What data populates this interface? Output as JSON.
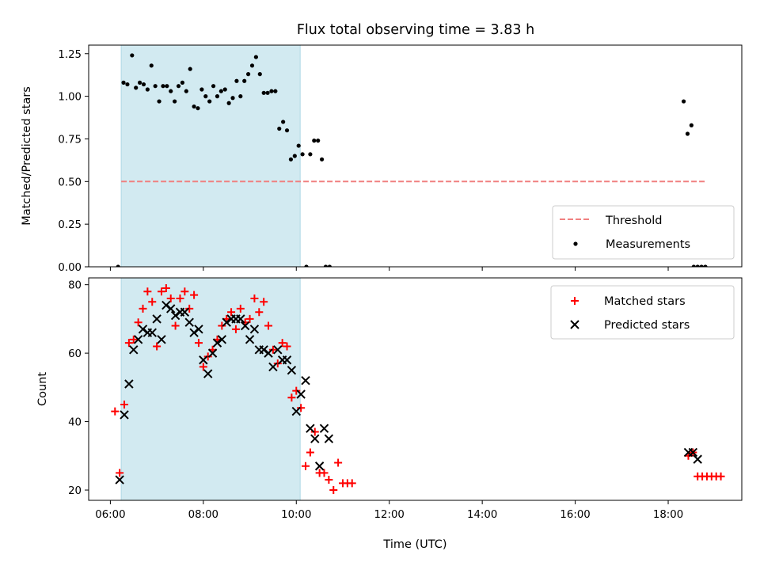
{
  "title": "Flux total observing time = 3.83 h",
  "chart_data": [
    {
      "id": "ratio",
      "type": "scatter",
      "ylabel": "Matched/Predicted stars",
      "xlabel": "",
      "xlim": [
        "05:32",
        "19:35"
      ],
      "ylim": [
        0,
        1.3
      ],
      "yticks": [
        0.0,
        0.25,
        0.5,
        0.75,
        1.0,
        1.25
      ],
      "ytick_labels": [
        "0.00",
        "0.25",
        "0.50",
        "0.75",
        "1.00",
        "1.25"
      ],
      "shaded_interval": [
        "06:14",
        "10:05"
      ],
      "threshold": {
        "label": "Threshold",
        "value": 0.5,
        "x_range": [
          "06:14",
          "18:50"
        ],
        "color": "#f08080"
      },
      "measurements": {
        "label": "Measurements",
        "color": "#000000",
        "points": [
          [
            "06:10",
            0.0
          ],
          [
            "06:17",
            1.08
          ],
          [
            "06:22",
            1.07
          ],
          [
            "06:28",
            1.24
          ],
          [
            "06:33",
            1.05
          ],
          [
            "06:38",
            1.08
          ],
          [
            "06:43",
            1.07
          ],
          [
            "06:48",
            1.04
          ],
          [
            "06:53",
            1.18
          ],
          [
            "06:58",
            1.06
          ],
          [
            "07:03",
            0.97
          ],
          [
            "07:08",
            1.06
          ],
          [
            "07:13",
            1.06
          ],
          [
            "07:18",
            1.03
          ],
          [
            "07:23",
            0.97
          ],
          [
            "07:28",
            1.06
          ],
          [
            "07:33",
            1.08
          ],
          [
            "07:38",
            1.03
          ],
          [
            "07:43",
            1.16
          ],
          [
            "07:48",
            0.94
          ],
          [
            "07:53",
            0.93
          ],
          [
            "07:58",
            1.04
          ],
          [
            "08:03",
            1.0
          ],
          [
            "08:08",
            0.97
          ],
          [
            "08:13",
            1.06
          ],
          [
            "08:18",
            1.0
          ],
          [
            "08:23",
            1.03
          ],
          [
            "08:28",
            1.04
          ],
          [
            "08:33",
            0.96
          ],
          [
            "08:38",
            0.99
          ],
          [
            "08:43",
            1.09
          ],
          [
            "08:48",
            1.0
          ],
          [
            "08:53",
            1.09
          ],
          [
            "08:58",
            1.13
          ],
          [
            "09:03",
            1.18
          ],
          [
            "09:08",
            1.23
          ],
          [
            "09:13",
            1.13
          ],
          [
            "09:18",
            1.02
          ],
          [
            "09:23",
            1.02
          ],
          [
            "09:28",
            1.03
          ],
          [
            "09:33",
            1.03
          ],
          [
            "09:38",
            0.81
          ],
          [
            "09:43",
            0.85
          ],
          [
            "09:48",
            0.8
          ],
          [
            "09:53",
            0.63
          ],
          [
            "09:58",
            0.65
          ],
          [
            "10:03",
            0.71
          ],
          [
            "10:08",
            0.66
          ],
          [
            "10:13",
            0.0
          ],
          [
            "10:18",
            0.66
          ],
          [
            "10:23",
            0.74
          ],
          [
            "10:28",
            0.74
          ],
          [
            "10:33",
            0.63
          ],
          [
            "10:38",
            0.0
          ],
          [
            "10:43",
            0.0
          ],
          [
            "18:20",
            0.97
          ],
          [
            "18:25",
            0.78
          ],
          [
            "18:30",
            0.83
          ],
          [
            "18:33",
            0.0
          ],
          [
            "18:38",
            0.0
          ],
          [
            "18:43",
            0.0
          ],
          [
            "18:48",
            0.0
          ]
        ]
      },
      "legend": {
        "position": "lower right",
        "entries": [
          "Threshold",
          "Measurements"
        ]
      }
    },
    {
      "id": "counts",
      "type": "scatter",
      "ylabel": "Count",
      "xlabel": "Time (UTC)",
      "xlim": [
        "05:32",
        "19:35"
      ],
      "ylim": [
        17,
        82
      ],
      "yticks": [
        20,
        40,
        60,
        80
      ],
      "ytick_labels": [
        "20",
        "40",
        "60",
        "80"
      ],
      "xticks": [
        "06:00",
        "08:00",
        "10:00",
        "12:00",
        "14:00",
        "16:00",
        "18:00"
      ],
      "shaded_interval": [
        "06:14",
        "10:05"
      ],
      "series": [
        {
          "name": "Matched stars",
          "marker": "plus",
          "color": "#ff0000",
          "points": [
            [
              "06:06",
              43
            ],
            [
              "06:12",
              25
            ],
            [
              "06:18",
              45
            ],
            [
              "06:24",
              63
            ],
            [
              "06:30",
              64
            ],
            [
              "06:36",
              69
            ],
            [
              "06:42",
              73
            ],
            [
              "06:48",
              78
            ],
            [
              "06:54",
              75
            ],
            [
              "07:00",
              62
            ],
            [
              "07:06",
              78
            ],
            [
              "07:12",
              79
            ],
            [
              "07:18",
              76
            ],
            [
              "07:24",
              68
            ],
            [
              "07:30",
              76
            ],
            [
              "07:36",
              78
            ],
            [
              "07:42",
              73
            ],
            [
              "07:48",
              77
            ],
            [
              "07:54",
              63
            ],
            [
              "08:00",
              56
            ],
            [
              "08:06",
              59
            ],
            [
              "08:12",
              61
            ],
            [
              "08:18",
              64
            ],
            [
              "08:24",
              68
            ],
            [
              "08:30",
              70
            ],
            [
              "08:36",
              72
            ],
            [
              "08:42",
              67
            ],
            [
              "08:48",
              73
            ],
            [
              "08:54",
              69
            ],
            [
              "09:00",
              70
            ],
            [
              "09:06",
              76
            ],
            [
              "09:12",
              72
            ],
            [
              "09:18",
              75
            ],
            [
              "09:24",
              68
            ],
            [
              "09:30",
              61
            ],
            [
              "09:36",
              57
            ],
            [
              "09:42",
              63
            ],
            [
              "09:48",
              62
            ],
            [
              "09:54",
              47
            ],
            [
              "10:00",
              49
            ],
            [
              "10:06",
              44
            ],
            [
              "10:12",
              27
            ],
            [
              "10:18",
              31
            ],
            [
              "10:24",
              37
            ],
            [
              "10:30",
              25
            ],
            [
              "10:36",
              25
            ],
            [
              "10:42",
              23
            ],
            [
              "10:48",
              20
            ],
            [
              "10:54",
              28
            ],
            [
              "11:00",
              22
            ],
            [
              "11:06",
              22
            ],
            [
              "11:12",
              22
            ],
            [
              "18:26",
              30
            ],
            [
              "18:32",
              31
            ],
            [
              "18:38",
              24
            ],
            [
              "18:44",
              24
            ],
            [
              "18:50",
              24
            ],
            [
              "18:56",
              24
            ],
            [
              "19:02",
              24
            ],
            [
              "19:08",
              24
            ]
          ]
        },
        {
          "name": "Predicted stars",
          "marker": "x",
          "color": "#000000",
          "points": [
            [
              "06:12",
              23
            ],
            [
              "06:18",
              42
            ],
            [
              "06:24",
              51
            ],
            [
              "06:30",
              61
            ],
            [
              "06:36",
              64
            ],
            [
              "06:42",
              67
            ],
            [
              "06:48",
              66
            ],
            [
              "06:54",
              66
            ],
            [
              "07:00",
              70
            ],
            [
              "07:06",
              64
            ],
            [
              "07:12",
              74
            ],
            [
              "07:18",
              73
            ],
            [
              "07:24",
              71
            ],
            [
              "07:30",
              72
            ],
            [
              "07:36",
              72
            ],
            [
              "07:42",
              69
            ],
            [
              "07:48",
              66
            ],
            [
              "07:54",
              67
            ],
            [
              "08:00",
              58
            ],
            [
              "08:06",
              54
            ],
            [
              "08:12",
              60
            ],
            [
              "08:18",
              63
            ],
            [
              "08:24",
              64
            ],
            [
              "08:30",
              69
            ],
            [
              "08:36",
              70
            ],
            [
              "08:42",
              70
            ],
            [
              "08:48",
              70
            ],
            [
              "08:54",
              68
            ],
            [
              "09:00",
              64
            ],
            [
              "09:06",
              67
            ],
            [
              "09:12",
              61
            ],
            [
              "09:18",
              61
            ],
            [
              "09:24",
              60
            ],
            [
              "09:30",
              56
            ],
            [
              "09:36",
              61
            ],
            [
              "09:42",
              58
            ],
            [
              "09:48",
              58
            ],
            [
              "09:54",
              55
            ],
            [
              "10:00",
              43
            ],
            [
              "10:06",
              48
            ],
            [
              "10:12",
              52
            ],
            [
              "10:18",
              38
            ],
            [
              "10:24",
              35
            ],
            [
              "10:30",
              27
            ],
            [
              "10:36",
              38
            ],
            [
              "10:42",
              35
            ],
            [
              "18:26",
              31
            ],
            [
              "18:32",
              31
            ],
            [
              "18:38",
              29
            ]
          ]
        }
      ],
      "legend": {
        "position": "upper right",
        "entries": [
          "Matched stars",
          "Predicted stars"
        ]
      }
    }
  ]
}
